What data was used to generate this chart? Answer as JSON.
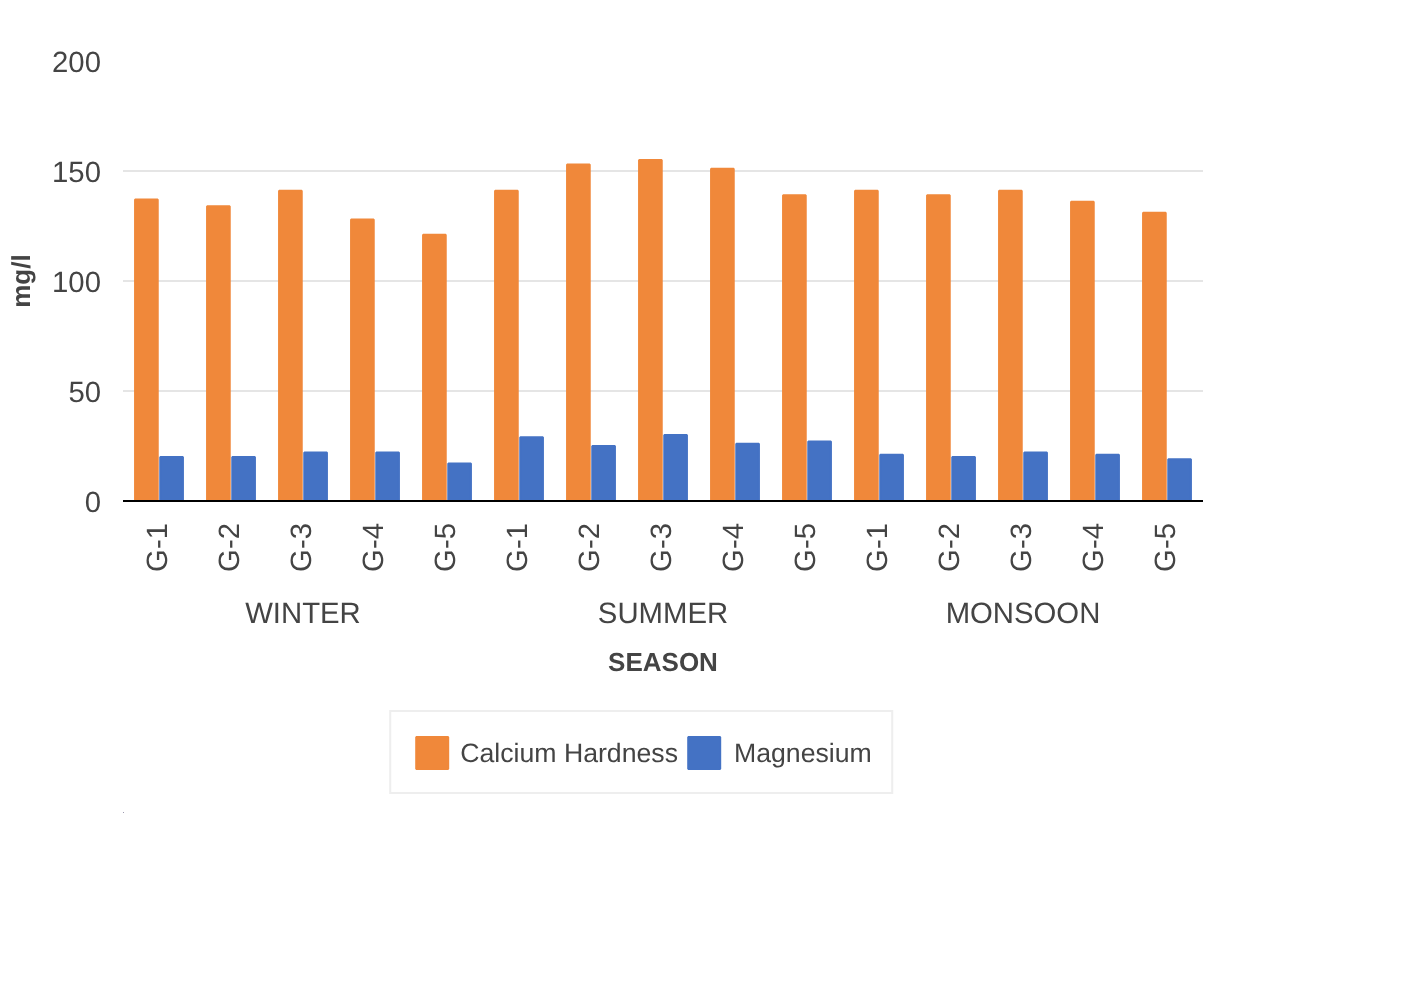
{
  "chart_data": {
    "type": "bar",
    "xlabel": "SEASON",
    "ylabel": "mg/l",
    "categories": [
      "G-1",
      "G-2",
      "G-3",
      "G-4",
      "G-5",
      "G-1",
      "G-2",
      "G-3",
      "G-4",
      "G-5",
      "G-1",
      "G-2",
      "G-3",
      "G-4",
      "G-5"
    ],
    "series": [
      {
        "name": "Calcium Hardness",
        "color": "#f0883a",
        "values": [
          137,
          134,
          141,
          128,
          121,
          141,
          153,
          155,
          151,
          139,
          141,
          139,
          141,
          136,
          131
        ]
      },
      {
        "name": "Magnesium",
        "color": "#4472c4",
        "values": [
          20,
          20,
          22,
          22,
          17,
          29,
          25,
          30,
          26,
          27,
          21,
          20,
          22,
          21,
          19
        ]
      }
    ],
    "annotations": [
      "WINTER",
      "SUMMER",
      "MONSOON"
    ],
    "ylim": [
      0,
      200
    ],
    "yticks": [
      0,
      50,
      100,
      150,
      200
    ],
    "grid": "y",
    "legend": "bottom"
  }
}
